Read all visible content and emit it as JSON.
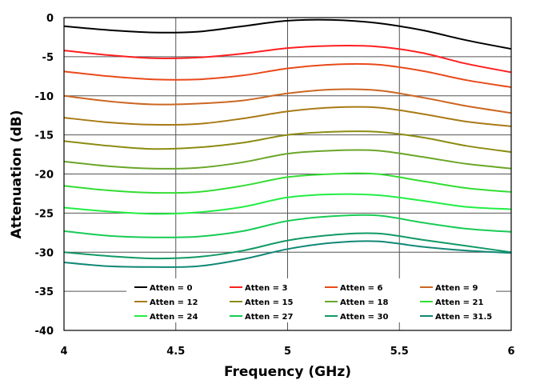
{
  "chart_data": {
    "type": "line",
    "title": "",
    "xlabel": "Frequency (GHz)",
    "ylabel": "Attenuation (dB)",
    "xlim": [
      4,
      6
    ],
    "ylim": [
      -40,
      0
    ],
    "xticks": [
      "4",
      "4.5",
      "5",
      "5.5",
      "6"
    ],
    "yticks": [
      "0",
      "-5",
      "-10",
      "-15",
      "-20",
      "-25",
      "-30",
      "-35",
      "-40"
    ],
    "grid": true,
    "legend_position": "bottom-inside",
    "series": [
      {
        "name": "Atten = 0",
        "color": "#000000",
        "x": [
          4.0,
          4.2,
          4.4,
          4.6,
          4.8,
          5.0,
          5.2,
          5.4,
          5.6,
          5.8,
          6.0
        ],
        "values": [
          -1.1,
          -1.6,
          -1.9,
          -1.8,
          -1.1,
          -0.4,
          -0.3,
          -0.7,
          -1.6,
          -2.9,
          -4.0
        ]
      },
      {
        "name": "Atten = 3",
        "color": "#ff2020",
        "x": [
          4.0,
          4.2,
          4.4,
          4.6,
          4.8,
          5.0,
          5.2,
          5.4,
          5.6,
          5.8,
          6.0
        ],
        "values": [
          -4.2,
          -4.8,
          -5.2,
          -5.1,
          -4.6,
          -3.9,
          -3.6,
          -3.7,
          -4.5,
          -5.9,
          -7.0
        ]
      },
      {
        "name": "Atten = 6",
        "color": "#e84a1a",
        "x": [
          4.0,
          4.2,
          4.4,
          4.6,
          4.8,
          5.0,
          5.2,
          5.4,
          5.6,
          5.8,
          6.0
        ],
        "values": [
          -6.9,
          -7.5,
          -7.9,
          -7.9,
          -7.4,
          -6.5,
          -6.0,
          -6.0,
          -6.8,
          -8.0,
          -8.9
        ]
      },
      {
        "name": "Atten = 9",
        "color": "#cc6622",
        "x": [
          4.0,
          4.2,
          4.4,
          4.6,
          4.8,
          5.0,
          5.2,
          5.4,
          5.6,
          5.8,
          6.0
        ],
        "values": [
          -10.0,
          -10.7,
          -11.1,
          -11.0,
          -10.6,
          -9.7,
          -9.2,
          -9.3,
          -10.2,
          -11.3,
          -12.2
        ]
      },
      {
        "name": "Atten = 12",
        "color": "#a87a16",
        "x": [
          4.0,
          4.2,
          4.4,
          4.6,
          4.8,
          5.0,
          5.2,
          5.4,
          5.6,
          5.8,
          6.0
        ],
        "values": [
          -12.8,
          -13.4,
          -13.7,
          -13.6,
          -12.9,
          -12.0,
          -11.5,
          -11.5,
          -12.3,
          -13.3,
          -13.9
        ]
      },
      {
        "name": "Atten = 15",
        "color": "#8c8c14",
        "x": [
          4.0,
          4.2,
          4.4,
          4.6,
          4.8,
          5.0,
          5.2,
          5.4,
          5.6,
          5.8,
          6.0
        ],
        "values": [
          -15.8,
          -16.4,
          -16.8,
          -16.6,
          -16.0,
          -15.0,
          -14.6,
          -14.6,
          -15.3,
          -16.4,
          -17.2
        ]
      },
      {
        "name": "Atten = 18",
        "color": "#6aa628",
        "x": [
          4.0,
          4.2,
          4.4,
          4.6,
          4.8,
          5.0,
          5.2,
          5.4,
          5.6,
          5.8,
          6.0
        ],
        "values": [
          -18.4,
          -19.0,
          -19.3,
          -19.2,
          -18.5,
          -17.4,
          -17.0,
          -17.0,
          -17.8,
          -18.7,
          -19.3
        ]
      },
      {
        "name": "Atten = 21",
        "color": "#33dd33",
        "x": [
          4.0,
          4.2,
          4.4,
          4.6,
          4.8,
          5.0,
          5.2,
          5.4,
          5.6,
          5.8,
          6.0
        ],
        "values": [
          -21.5,
          -22.1,
          -22.4,
          -22.3,
          -21.5,
          -20.4,
          -20.0,
          -20.0,
          -20.9,
          -21.8,
          -22.3
        ]
      },
      {
        "name": "Atten = 24",
        "color": "#22ee44",
        "x": [
          4.0,
          4.2,
          4.4,
          4.6,
          4.8,
          5.0,
          5.2,
          5.4,
          5.6,
          5.8,
          6.0
        ],
        "values": [
          -24.3,
          -24.8,
          -25.1,
          -24.9,
          -24.2,
          -23.0,
          -22.6,
          -22.7,
          -23.4,
          -24.2,
          -24.5
        ]
      },
      {
        "name": "Atten = 27",
        "color": "#18cc55",
        "x": [
          4.0,
          4.2,
          4.4,
          4.6,
          4.8,
          5.0,
          5.2,
          5.4,
          5.6,
          5.8,
          6.0
        ],
        "values": [
          -27.3,
          -27.9,
          -28.1,
          -28.0,
          -27.3,
          -26.0,
          -25.4,
          -25.3,
          -26.2,
          -27.0,
          -27.4
        ]
      },
      {
        "name": "Atten = 30",
        "color": "#119966",
        "x": [
          4.0,
          4.2,
          4.4,
          4.6,
          4.8,
          5.0,
          5.2,
          5.4,
          5.6,
          5.8,
          6.0
        ],
        "values": [
          -30.0,
          -30.5,
          -30.8,
          -30.6,
          -29.8,
          -28.5,
          -27.8,
          -27.6,
          -28.4,
          -29.2,
          -30.0
        ]
      },
      {
        "name": "Atten = 31.5",
        "color": "#118877",
        "x": [
          4.0,
          4.2,
          4.4,
          4.6,
          4.8,
          5.0,
          5.2,
          5.4,
          5.6,
          5.8,
          6.0
        ],
        "values": [
          -31.3,
          -31.8,
          -31.9,
          -31.8,
          -30.9,
          -29.6,
          -28.8,
          -28.6,
          -29.3,
          -29.8,
          -30.1
        ]
      }
    ]
  }
}
